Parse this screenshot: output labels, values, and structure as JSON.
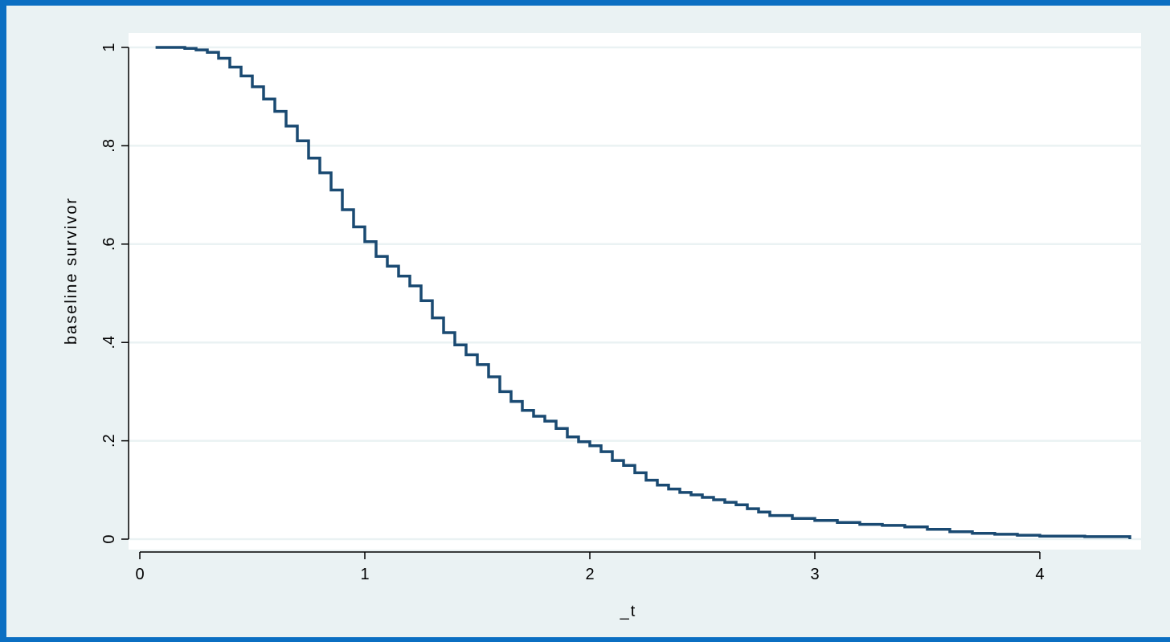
{
  "chart_data": {
    "type": "line",
    "title": "",
    "xlabel": "_t",
    "ylabel": "baseline survivor",
    "xlim": [
      -0.05,
      4.45
    ],
    "ylim": [
      0,
      1
    ],
    "x_ticks": [
      0,
      1,
      2,
      3,
      4
    ],
    "x_tick_labels": [
      "0",
      "1",
      "2",
      "3",
      "4"
    ],
    "y_ticks": [
      0,
      0.2,
      0.4,
      0.6,
      0.8,
      1
    ],
    "y_tick_labels": [
      "0",
      ".2",
      ".4",
      ".6",
      ".8",
      "1"
    ],
    "grid": "horizontal",
    "legend": "none",
    "colors": {
      "frame": "#0b6fc2",
      "plot_region": "#eaf2f3",
      "plot_area": "#ffffff",
      "grid": "#eaf2f3",
      "line": "#1a4a72"
    },
    "series": [
      {
        "x": [
          0.07,
          0.15,
          0.2,
          0.25,
          0.3,
          0.35,
          0.4,
          0.45,
          0.5,
          0.55,
          0.6,
          0.65,
          0.7,
          0.75,
          0.8,
          0.85,
          0.9,
          0.95,
          1.0,
          1.05,
          1.1,
          1.15,
          1.2,
          1.25,
          1.3,
          1.35,
          1.4,
          1.45,
          1.5,
          1.55,
          1.6,
          1.65,
          1.7,
          1.75,
          1.8,
          1.85,
          1.9,
          1.95,
          2.0,
          2.05,
          2.1,
          2.15,
          2.2,
          2.25,
          2.3,
          2.35,
          2.4,
          2.45,
          2.5,
          2.55,
          2.6,
          2.65,
          2.7,
          2.75,
          2.8,
          2.9,
          3.0,
          3.1,
          3.2,
          3.3,
          3.4,
          3.5,
          3.6,
          3.7,
          3.8,
          3.9,
          4.0,
          4.2,
          4.4
        ],
        "y": [
          1.0,
          1.0,
          0.998,
          0.995,
          0.99,
          0.978,
          0.96,
          0.942,
          0.92,
          0.895,
          0.87,
          0.84,
          0.81,
          0.775,
          0.745,
          0.71,
          0.67,
          0.635,
          0.605,
          0.575,
          0.555,
          0.535,
          0.515,
          0.485,
          0.45,
          0.42,
          0.395,
          0.375,
          0.355,
          0.33,
          0.3,
          0.28,
          0.262,
          0.25,
          0.24,
          0.225,
          0.208,
          0.198,
          0.19,
          0.178,
          0.16,
          0.15,
          0.135,
          0.12,
          0.11,
          0.102,
          0.095,
          0.09,
          0.085,
          0.08,
          0.075,
          0.07,
          0.062,
          0.055,
          0.048,
          0.042,
          0.038,
          0.034,
          0.03,
          0.028,
          0.025,
          0.02,
          0.015,
          0.012,
          0.01,
          0.008,
          0.006,
          0.005,
          0.0
        ]
      }
    ]
  }
}
